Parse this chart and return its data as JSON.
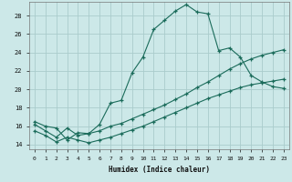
{
  "xlabel": "Humidex (Indice chaleur)",
  "xlim": [
    -0.5,
    23.5
  ],
  "ylim": [
    13.5,
    29.5
  ],
  "yticks": [
    14,
    16,
    18,
    20,
    22,
    24,
    26,
    28
  ],
  "xticks": [
    0,
    1,
    2,
    3,
    4,
    5,
    6,
    7,
    8,
    9,
    10,
    11,
    12,
    13,
    14,
    15,
    16,
    17,
    18,
    19,
    20,
    21,
    22,
    23
  ],
  "bg_color": "#cce8e8",
  "grid_color": "#aacccc",
  "line_color": "#1a6b5a",
  "line1_x": [
    0,
    1,
    2,
    3,
    4,
    5,
    6,
    7,
    8,
    9,
    10,
    11,
    12,
    13,
    14,
    15,
    16,
    17,
    18,
    19,
    20,
    21,
    22,
    23
  ],
  "line1_y": [
    16.5,
    16.0,
    15.8,
    14.5,
    15.3,
    15.2,
    16.2,
    18.5,
    18.8,
    21.8,
    23.5,
    26.5,
    27.5,
    28.5,
    29.2,
    28.4,
    28.2,
    24.2,
    24.5,
    23.5,
    21.5,
    20.8,
    20.3,
    20.1
  ],
  "line2_x": [
    0,
    1,
    2,
    3,
    4,
    5,
    6,
    7,
    8,
    9,
    10,
    11,
    12,
    13,
    14,
    15,
    16,
    17,
    18,
    19,
    20,
    21,
    22,
    23
  ],
  "line2_y": [
    16.2,
    15.5,
    14.8,
    15.8,
    15.0,
    15.2,
    15.5,
    16.0,
    16.3,
    16.8,
    17.3,
    17.8,
    18.3,
    18.9,
    19.5,
    20.2,
    20.8,
    21.5,
    22.2,
    22.8,
    23.3,
    23.7,
    24.0,
    24.3
  ],
  "line3_x": [
    0,
    1,
    2,
    3,
    4,
    5,
    6,
    7,
    8,
    9,
    10,
    11,
    12,
    13,
    14,
    15,
    16,
    17,
    18,
    19,
    20,
    21,
    22,
    23
  ],
  "line3_y": [
    15.5,
    15.0,
    14.3,
    14.8,
    14.5,
    14.2,
    14.5,
    14.8,
    15.2,
    15.6,
    16.0,
    16.5,
    17.0,
    17.5,
    18.0,
    18.5,
    19.0,
    19.4,
    19.8,
    20.2,
    20.5,
    20.7,
    20.9,
    21.1
  ]
}
